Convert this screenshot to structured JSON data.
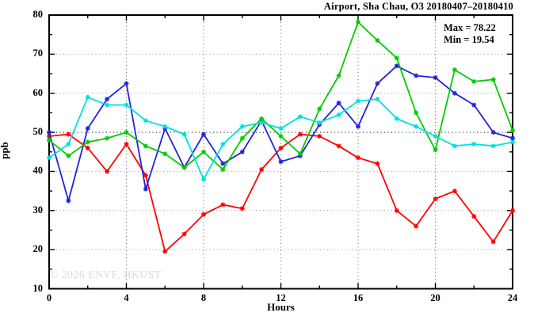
{
  "title": "Airport, Sha Chau, O3 20180407–20180410",
  "annotations": {
    "max_line": "Max = 78.22",
    "min_line": "Min = 19.54"
  },
  "watermark": "© 2026 ENVF, HKUST",
  "chart_data": {
    "type": "line",
    "title": "Airport, Sha Chau, O3 20180407–20180410",
    "xlabel": "Hours",
    "ylabel": "ppb",
    "xlim": [
      0,
      24
    ],
    "ylim": [
      10,
      80
    ],
    "x_major_ticks": [
      0,
      4,
      8,
      12,
      16,
      20,
      24
    ],
    "x_tick_labels": [
      "0",
      "4",
      "8",
      "12",
      "16",
      "20",
      "24"
    ],
    "x_minor_ticks": [
      2,
      6,
      10,
      14,
      18,
      22
    ],
    "y_major_ticks": [
      10,
      20,
      30,
      40,
      50,
      60,
      70,
      80
    ],
    "y_tick_labels": [
      "10",
      "20",
      "30",
      "40",
      "50",
      "60",
      "70",
      "80"
    ],
    "y_minor_ticks": [
      15,
      25,
      35,
      45,
      55,
      65,
      75
    ],
    "grid": {
      "horizontal_at": [
        20,
        30,
        40,
        50,
        60,
        70
      ],
      "vertical_at": [
        4,
        8,
        12,
        16,
        20
      ],
      "style": "dotted",
      "highlight_line_at": 50
    },
    "legend": "none",
    "max_value": 78.22,
    "min_value": 19.54,
    "x": [
      0,
      1,
      2,
      3,
      4,
      5,
      6,
      7,
      8,
      9,
      10,
      11,
      12,
      13,
      14,
      15,
      16,
      17,
      18,
      19,
      20,
      21,
      22,
      23,
      24
    ],
    "series": [
      {
        "name": "day-1-red",
        "color": "#ff0000",
        "values": [
          49,
          49.5,
          46,
          40,
          47,
          39,
          19.54,
          24,
          29,
          31.5,
          30.5,
          40.5,
          46,
          49.5,
          49,
          46.5,
          43.5,
          42,
          30,
          26,
          33,
          35,
          28.5,
          22,
          30
        ]
      },
      {
        "name": "day-2-blue",
        "color": "#2222dd",
        "values": [
          50,
          32.5,
          51,
          58.5,
          62.5,
          35.5,
          51,
          41,
          49.5,
          42,
          45,
          53,
          42.5,
          44,
          52,
          57.5,
          51.5,
          62.5,
          67,
          64.5,
          64,
          60,
          57,
          50,
          48.5
        ]
      },
      {
        "name": "day-3-green",
        "color": "#00cc00",
        "values": [
          48,
          44,
          47.5,
          48.5,
          50,
          46.5,
          44.5,
          41,
          45,
          40.5,
          48.5,
          53.5,
          49,
          44.5,
          56,
          64.5,
          78.22,
          73.5,
          69,
          55,
          45.5,
          66,
          63,
          63.5,
          50.5
        ]
      },
      {
        "name": "day-4-cyan",
        "color": "#00e0e0",
        "values": [
          43.5,
          47,
          59,
          57,
          57,
          53,
          51.5,
          49.5,
          38,
          47,
          51.5,
          52.5,
          51,
          54,
          52.5,
          54.5,
          58,
          58.5,
          53.5,
          51.5,
          49,
          46.5,
          47,
          46.5,
          47.5
        ]
      }
    ]
  },
  "colors": {
    "axis": "#000000",
    "grid_major": "#999999",
    "grid_vertical": "#666666",
    "grid_highlight": "#000000",
    "watermark": "#dadada",
    "background": "#ffffff"
  }
}
